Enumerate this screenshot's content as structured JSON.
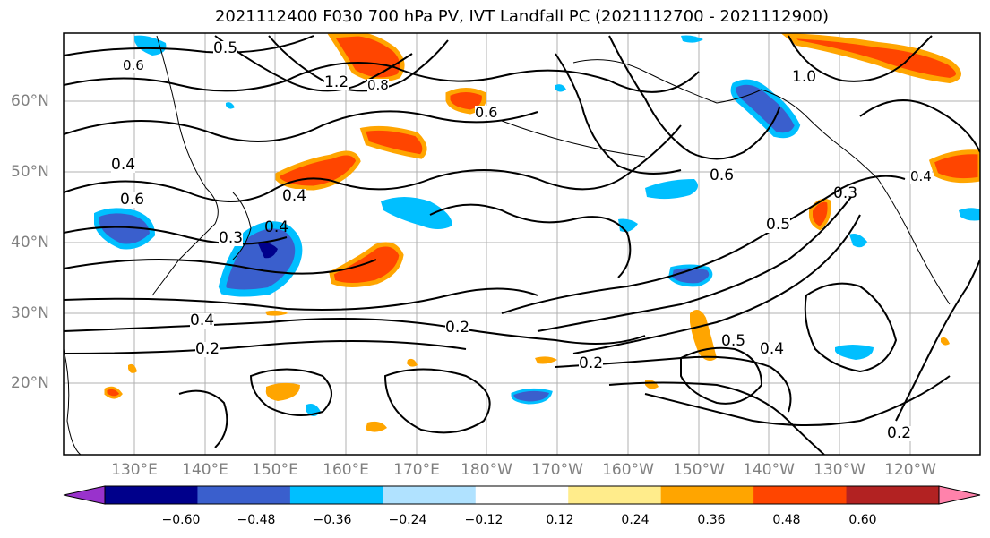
{
  "title": "2021112400 F030 700 hPa PV, IVT Landfall PC (2021112700 - 2021112900)",
  "map": {
    "lat_labels": [
      "60°N",
      "50°N",
      "40°N",
      "30°N",
      "20°N"
    ],
    "lon_labels": [
      "130°E",
      "140°E",
      "150°E",
      "160°E",
      "170°E",
      "180°W",
      "170°W",
      "160°W",
      "150°W",
      "140°W",
      "130°W",
      "120°W"
    ],
    "contour_labels": [
      "0.5",
      "0.6",
      "1.2",
      "0.8",
      "0.6",
      "0.4",
      "0.6",
      "0.4",
      "0.3",
      "0.4",
      "0.4",
      "0.2",
      "0.2",
      "0.2",
      "0.5",
      "0.6",
      "0.3",
      "0.4",
      "0.2",
      "0.4",
      "0.5",
      "1.0"
    ]
  },
  "colorbar": {
    "colors": [
      "#9932cc",
      "#00008b",
      "#3a5fcd",
      "#00bfff",
      "#b0e2ff",
      "#ffffff",
      "#ffec8b",
      "#ffa500",
      "#ff4500",
      "#b22222",
      "#ff82ab"
    ],
    "ticks": [
      "−0.60",
      "−0.48",
      "−0.36",
      "−0.24",
      "−0.12",
      "0.12",
      "0.24",
      "0.36",
      "0.48",
      "0.60"
    ]
  }
}
